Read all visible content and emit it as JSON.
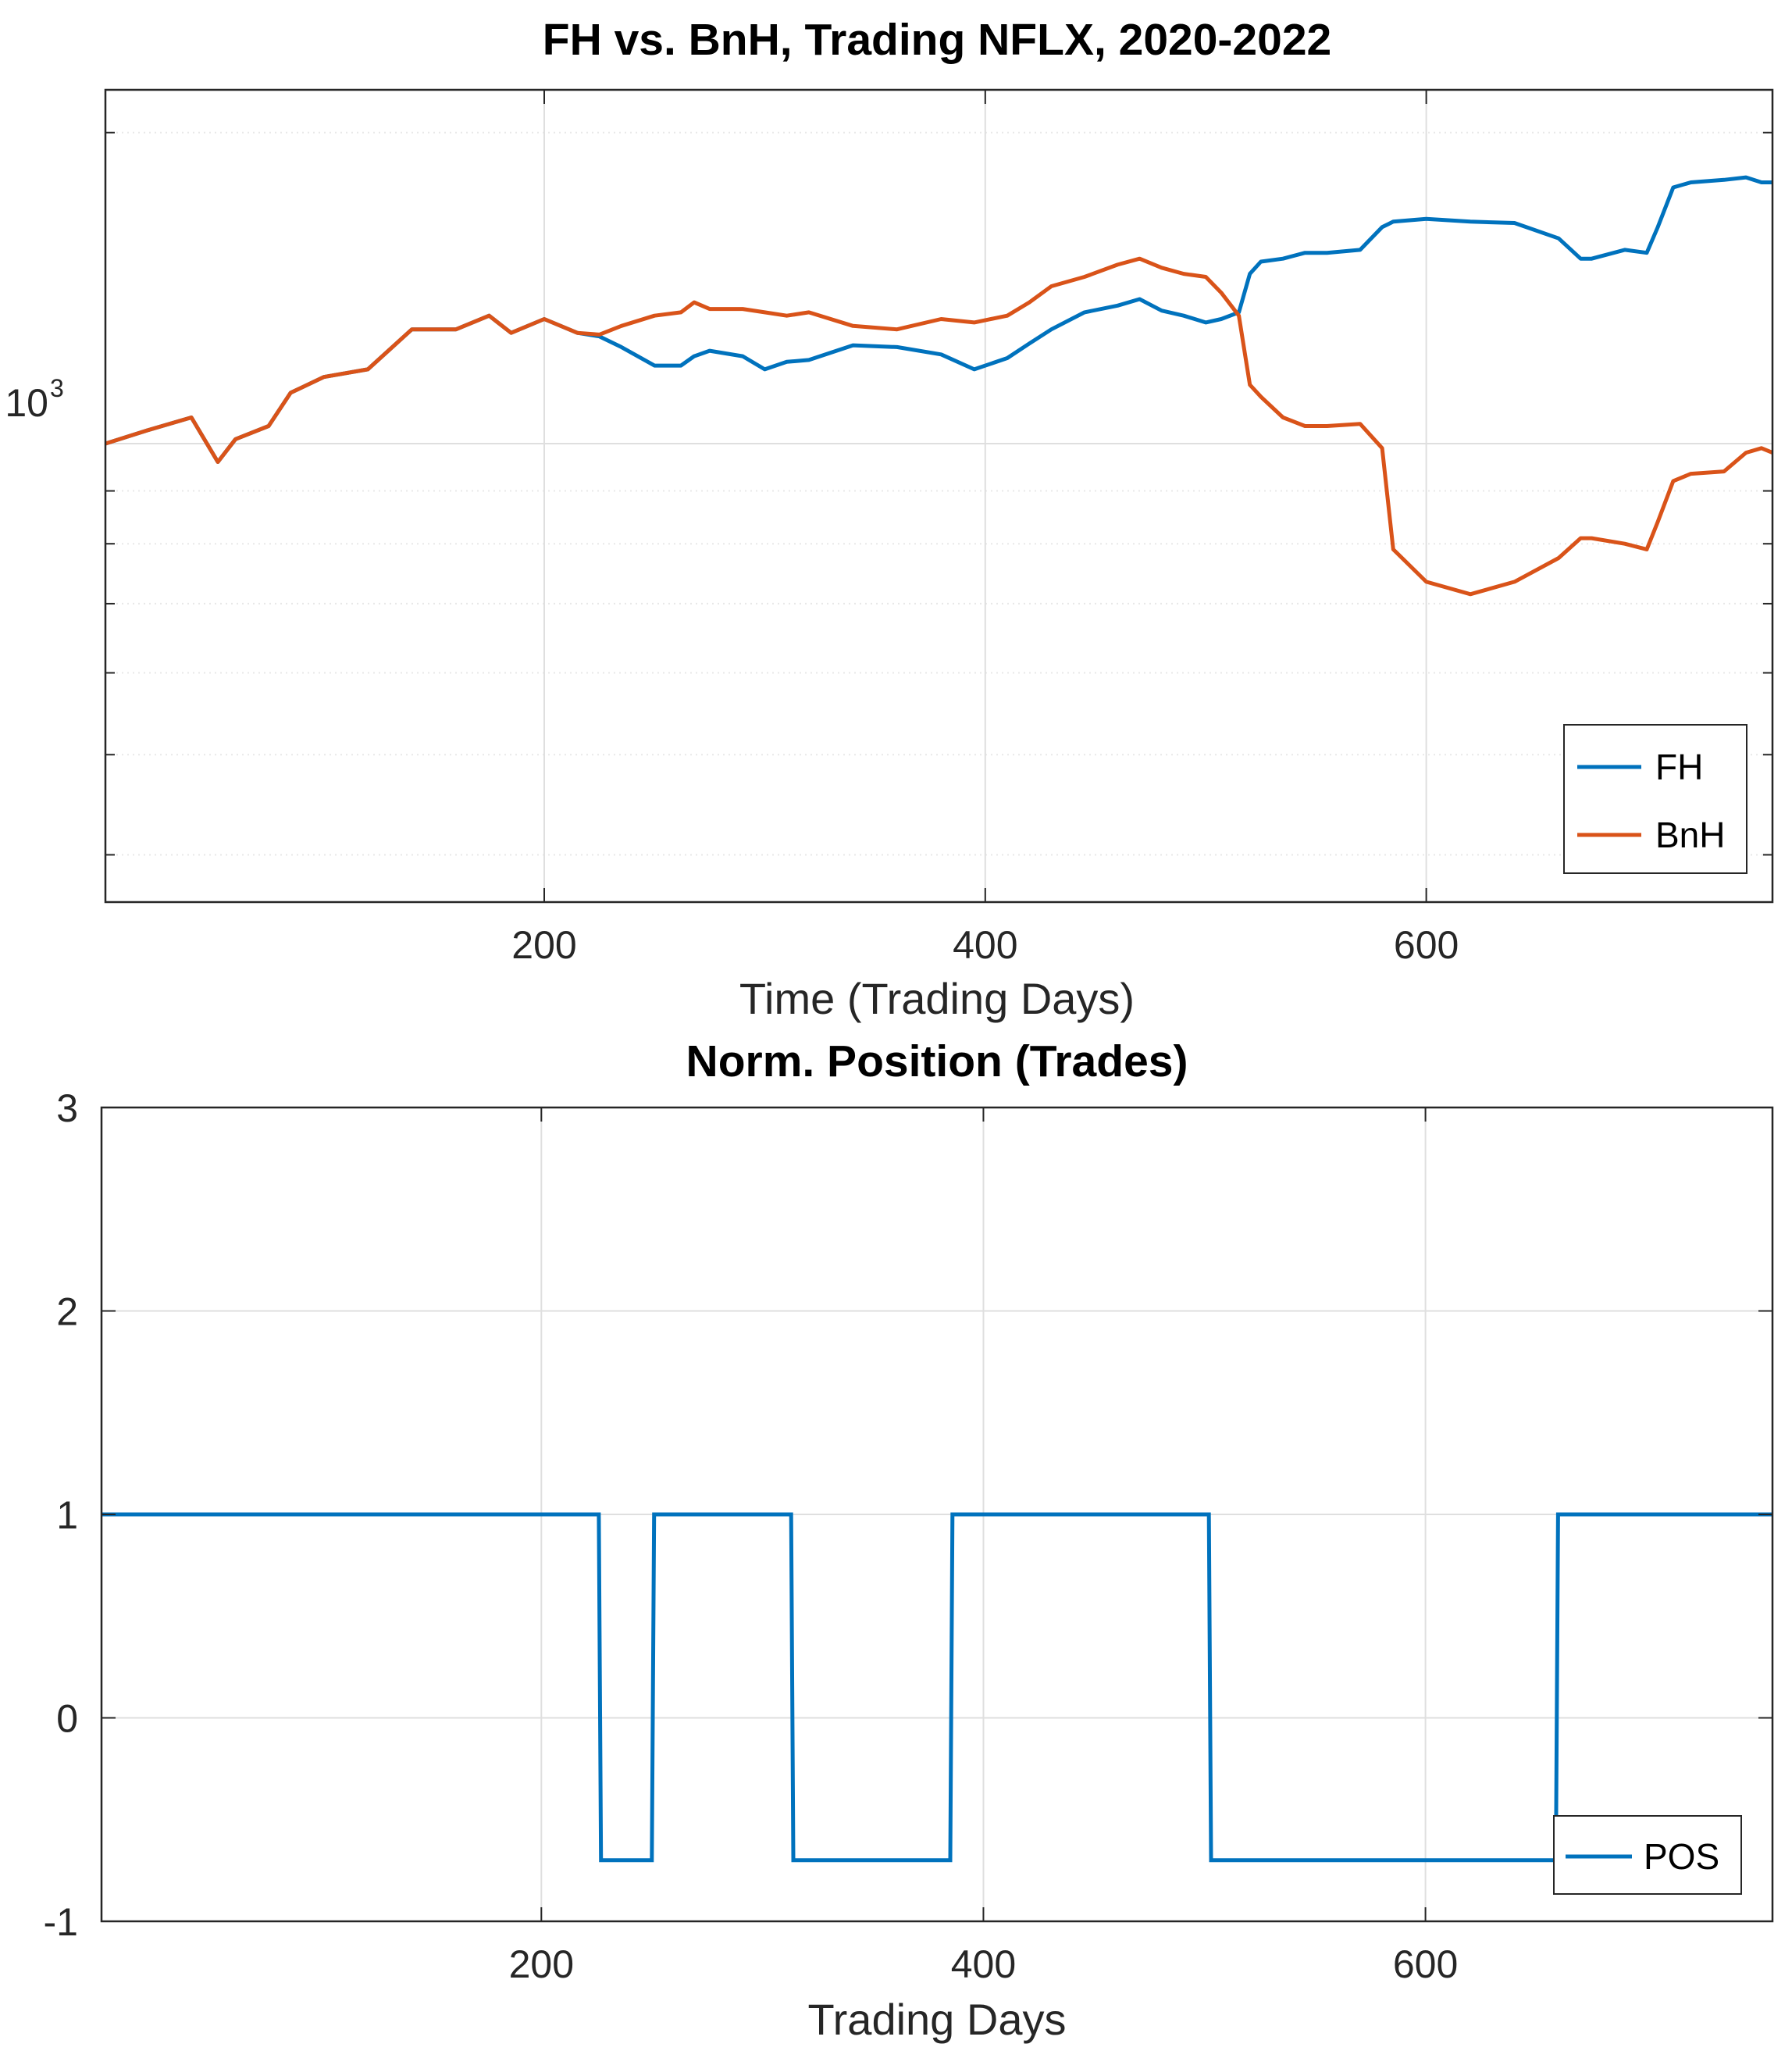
{
  "chart_data": [
    {
      "type": "line",
      "title": "FH vs. BnH, Trading NFLX, 2020-2022",
      "xlabel": "Time (Trading Days)",
      "ylabel": "",
      "yscale": "log",
      "xlim": [
        1,
        757
      ],
      "ylim": [
        360,
        2200
      ],
      "x_ticks": [
        200,
        400,
        600
      ],
      "x_tick_labels": [
        "200",
        "400",
        "600"
      ],
      "y_ticks": [
        1000
      ],
      "y_tick_labels": [
        "10",
        "3"
      ],
      "grid": "on",
      "legend_position": "bottom-right",
      "series": [
        {
          "name": "FH",
          "color": "#0072BD",
          "x": [
            1,
            20,
            40,
            52,
            60,
            75,
            85,
            100,
            120,
            140,
            160,
            175,
            185,
            200,
            215,
            225,
            235,
            250,
            262,
            268,
            275,
            290,
            300,
            310,
            320,
            340,
            360,
            380,
            395,
            410,
            420,
            430,
            445,
            460,
            470,
            480,
            490,
            500,
            507,
            515,
            520,
            525,
            535,
            545,
            555,
            570,
            580,
            585,
            600,
            620,
            640,
            660,
            670,
            675,
            690,
            700,
            705,
            712,
            720,
            735,
            745,
            752,
            757
          ],
          "values": [
            1000,
            1030,
            1060,
            960,
            1010,
            1040,
            1120,
            1160,
            1180,
            1290,
            1290,
            1330,
            1280,
            1320,
            1280,
            1270,
            1240,
            1190,
            1190,
            1215,
            1230,
            1215,
            1180,
            1200,
            1205,
            1245,
            1240,
            1220,
            1180,
            1210,
            1250,
            1290,
            1340,
            1360,
            1380,
            1345,
            1330,
            1310,
            1320,
            1340,
            1460,
            1500,
            1510,
            1530,
            1530,
            1540,
            1620,
            1640,
            1650,
            1640,
            1635,
            1580,
            1510,
            1510,
            1540,
            1530,
            1620,
            1770,
            1790,
            1800,
            1810,
            1790,
            1790
          ]
        },
        {
          "name": "BnH",
          "color": "#D95319",
          "x": [
            1,
            20,
            40,
            52,
            60,
            75,
            85,
            100,
            120,
            140,
            160,
            175,
            185,
            200,
            215,
            225,
            235,
            250,
            262,
            268,
            275,
            290,
            300,
            310,
            320,
            340,
            360,
            380,
            395,
            410,
            420,
            430,
            445,
            460,
            470,
            480,
            490,
            500,
            507,
            515,
            520,
            525,
            535,
            545,
            555,
            570,
            580,
            585,
            600,
            620,
            640,
            660,
            670,
            675,
            690,
            700,
            705,
            712,
            720,
            735,
            745,
            752,
            757
          ],
          "values": [
            1000,
            1030,
            1060,
            960,
            1010,
            1040,
            1120,
            1160,
            1180,
            1290,
            1290,
            1330,
            1280,
            1320,
            1280,
            1275,
            1300,
            1330,
            1340,
            1370,
            1350,
            1350,
            1340,
            1330,
            1340,
            1300,
            1290,
            1320,
            1310,
            1330,
            1370,
            1420,
            1450,
            1490,
            1510,
            1480,
            1460,
            1450,
            1400,
            1330,
            1140,
            1110,
            1060,
            1040,
            1040,
            1045,
            990,
            790,
            735,
            715,
            735,
            775,
            810,
            810,
            800,
            790,
            840,
            920,
            935,
            940,
            980,
            990,
            980
          ]
        }
      ]
    },
    {
      "type": "line",
      "title": "Norm. Position (Trades)",
      "xlabel": "Trading Days",
      "ylabel": "",
      "xlim": [
        1,
        757
      ],
      "ylim": [
        -1,
        3
      ],
      "x_ticks": [
        200,
        400,
        600
      ],
      "x_tick_labels": [
        "200",
        "400",
        "600"
      ],
      "y_ticks": [
        -1,
        0,
        1,
        2,
        3
      ],
      "y_tick_labels": [
        "-1",
        "0",
        "1",
        "2",
        "3"
      ],
      "grid": "on",
      "legend_position": "bottom-right",
      "series": [
        {
          "name": "POS",
          "color": "#0072BD",
          "x": [
            1,
            226,
            227,
            250,
            251,
            313,
            314,
            385,
            386,
            502,
            503,
            659,
            660,
            757
          ],
          "values": [
            1,
            1,
            -0.7,
            -0.7,
            1,
            1,
            -0.7,
            -0.7,
            1,
            1,
            -0.7,
            -0.7,
            1,
            1
          ]
        }
      ]
    }
  ]
}
